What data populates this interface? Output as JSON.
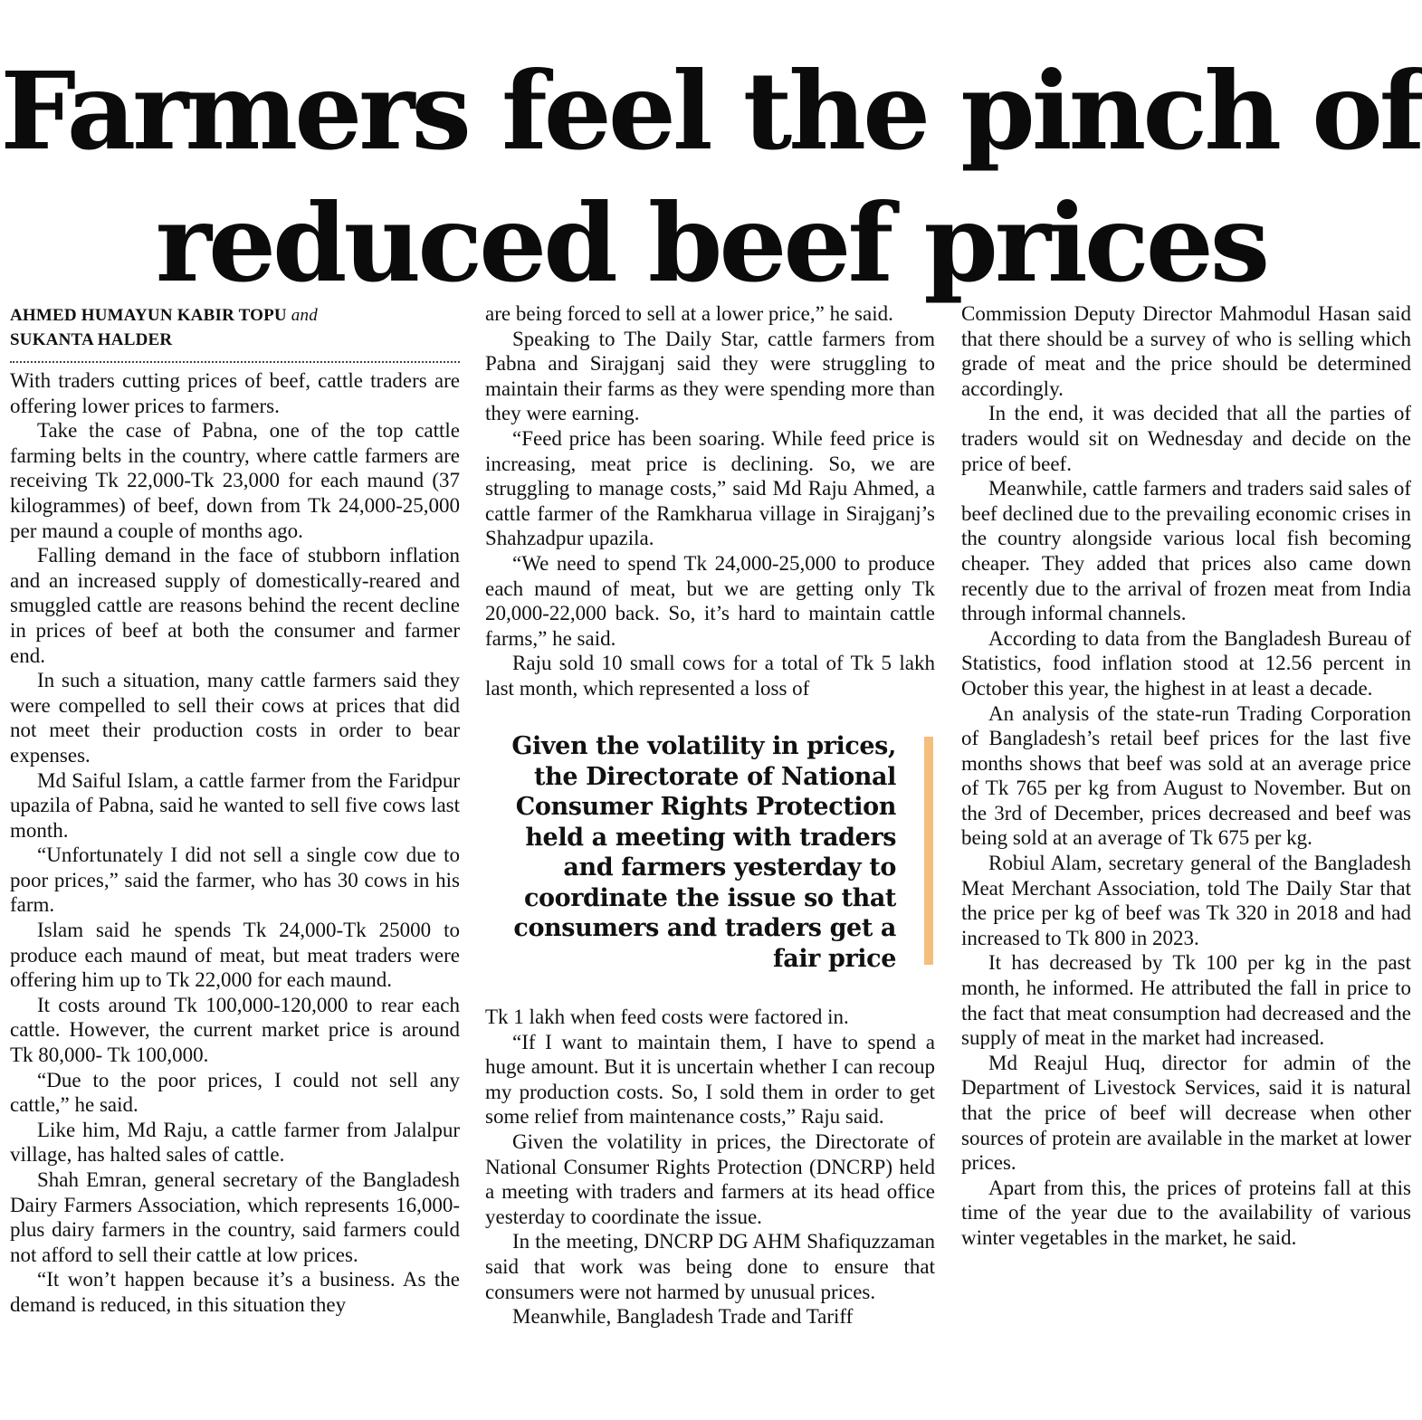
{
  "headline": {
    "line1": "Farmers feel the pinch of",
    "line2": "reduced beef prices"
  },
  "byline": {
    "author1": "AHMED HUMAYUN KABIR TOPU",
    "conjunction": "and",
    "author2": "SUKANTA HALDER"
  },
  "pullquote": "Given the volatility in prices, the Directorate of National Consumer Rights Protection held a meeting with traders and farmers yesterday to coordinate the issue so that consumers and traders get a fair price",
  "accent_color": "#f5be7c",
  "column1": [
    "With traders cutting prices of beef, cattle traders are offering lower prices to farmers.",
    "Take the case of Pabna, one of the top cattle farming belts in the country, where cattle farmers are receiving Tk 22,000-Tk 23,000 for each maund (37 kilogrammes) of beef, down from Tk 24,000-25,000 per maund a couple of months ago.",
    "Falling demand in the face of stubborn inflation and an increased supply of domestically-reared and smuggled cattle are reasons behind the recent decline in prices of beef at both the consumer and farmer end.",
    "In such a situation, many cattle farmers said they were compelled to sell their cows at prices that did not meet their production costs in order to bear expenses.",
    "Md Saiful Islam, a cattle farmer from the Faridpur upazila of Pabna, said he wanted to sell five cows last month.",
    "“Unfortunately I did not sell a single cow due to poor prices,” said the farmer, who has 30 cows in his farm.",
    "Islam said he spends Tk 24,000-Tk 25000 to produce each maund of meat, but meat traders were offering him up to Tk 22,000 for each maund.",
    "It costs around Tk 100,000-120,000 to rear each cattle. However, the current market price is around Tk 80,000- Tk 100,000.",
    "“Due to the poor prices, I could not sell any cattle,” he said.",
    "Like him, Md Raju, a cattle farmer from Jalalpur village, has halted sales of cattle.",
    "Shah Emran, general secretary of the Bangladesh Dairy Farmers Association, which represents 16,000-plus dairy farmers in the country, said farmers could not afford to sell their cattle at low prices.",
    "“It won’t happen because it’s a business. As the demand is reduced, in this situation they"
  ],
  "column2_top": [
    "are being forced to sell at a lower price,” he said.",
    "Speaking to The Daily Star, cattle farmers from Pabna and Sirajganj said they were struggling to maintain their farms as they were spending more than they were earning.",
    "“Feed price has been soaring. While feed price is increasing, meat price is declining. So, we are struggling to manage costs,” said Md Raju Ahmed, a cattle farmer of the Ramkharua village in Sirajganj’s Shahzadpur upazila.",
    "“We need to spend Tk 24,000-25,000 to produce each maund of meat, but we are getting only Tk 20,000-22,000 back. So, it’s hard to maintain cattle farms,” he said.",
    "Raju sold 10 small cows for a total of Tk 5 lakh last month, which represented a loss of"
  ],
  "column2_bottom": [
    "Tk 1 lakh when feed costs were factored in.",
    "“If I want to maintain them, I have to spend a huge amount. But it is uncertain whether I can recoup my production costs. So, I sold them in order to get some relief from maintenance costs,” Raju said.",
    "Given the volatility in prices, the Directorate of National Consumer Rights Protection (DNCRP) held a meeting with traders and farmers at its head office yesterday to coordinate the issue.",
    "In the meeting, DNCRP DG AHM Shafiquzzaman said that work was being done to ensure that consumers were not harmed by unusual prices.",
    "Meanwhile, Bangladesh Trade and Tariff"
  ],
  "column3": [
    "Commission Deputy Director Mahmodul Hasan said that there should be a survey of who is selling which grade of meat and the price should be determined accordingly.",
    "In the end, it was decided that all the parties of traders would sit on Wednesday and decide on the price of beef.",
    "Meanwhile, cattle farmers and traders said sales of beef declined due to the prevailing economic crises in the country alongside various local fish becoming cheaper. They added that prices also came down recently due to the arrival of frozen meat from India through informal channels.",
    "According to data from the Bangladesh Bureau of Statistics, food inflation stood at 12.56 percent in October this year, the highest in at least a decade.",
    "An analysis of the state-run Trading Corporation of Bangladesh’s retail beef prices for the last five months shows that beef was sold at an average price of Tk 765 per kg from August to November. But on the 3rd of December, prices decreased and beef was being sold at an average of Tk 675 per kg.",
    "Robiul Alam, secretary general of the Bangladesh Meat Merchant Association, told The Daily Star that the price per kg of beef was Tk 320 in 2018 and had increased to Tk 800 in 2023.",
    "It has decreased by Tk 100 per kg in the past month, he informed. He attributed the fall in price to the fact that meat consumption had decreased and the supply of meat in the market had increased.",
    "Md Reajul Huq, director for admin of the Department of Livestock Services, said it is natural that the price of beef will decrease when other sources of protein are available in the market at lower prices.",
    "Apart from this, the prices of proteins fall at this time of the year due to the availability of various winter vegetables in the market, he said."
  ]
}
